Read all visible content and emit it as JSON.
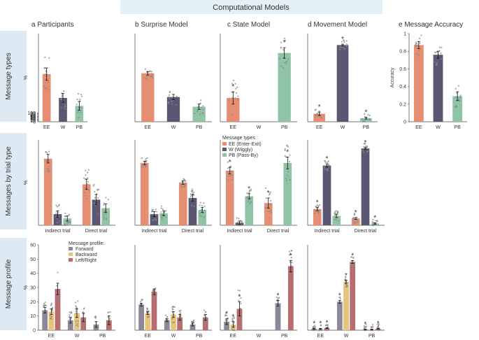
{
  "header": {
    "computational_label": "Computational Models"
  },
  "row_labels": [
    "Message types",
    "Messages by trial type",
    "Message profile"
  ],
  "column_titles": {
    "a": "a   Participants",
    "b": "b   Surprise Model",
    "c": "c   State Model",
    "d": "d   Movement Model",
    "e": "e   Message Accuracy"
  },
  "colors": {
    "EE": "#e58e72",
    "W": "#5b5773",
    "PB": "#8fc4a7",
    "Forward": "#8e8799",
    "Backward": "#e6c47a",
    "LeftRight": "#b86c6f",
    "banner": "#e4f0f8",
    "rowband": "#dde9f3",
    "dot": "#8a8a8a"
  },
  "legends": {
    "types_title": "Message types :",
    "types": [
      {
        "key": "EE",
        "label": "EE (Enter-Exit)"
      },
      {
        "key": "W",
        "label": "W (Wiggly)"
      },
      {
        "key": "PB",
        "label": "PB (Pass-By)"
      }
    ],
    "profile_title": "Message profile:",
    "profile": [
      {
        "key": "Forward",
        "label": "Forward"
      },
      {
        "key": "Backward",
        "label": "Backward"
      },
      {
        "key": "LeftRight",
        "label": "Left/Right"
      }
    ]
  },
  "chart_data": [
    {
      "id": "a1",
      "type": "bar",
      "title": "Participants",
      "ylabel": "%",
      "ylim": [
        0,
        100
      ],
      "yticks": [
        "0",
        "10",
        "20",
        "30",
        "40",
        "50",
        "60",
        "70",
        "80",
        "90",
        "100"
      ],
      "tick_every": 1,
      "categories": [
        "EE",
        "W",
        "PB"
      ],
      "values": [
        54,
        27,
        18
      ],
      "errors": [
        7,
        5,
        5
      ],
      "stars": [],
      "dots": true
    },
    {
      "id": "b1",
      "type": "bar",
      "title": "Surprise Model",
      "ylabel": "",
      "ylim": [
        0,
        100
      ],
      "categories": [
        "EE",
        "W",
        "PB"
      ],
      "values": [
        55,
        28,
        17
      ],
      "errors": [
        2,
        3,
        3
      ],
      "stars": [],
      "dots": true
    },
    {
      "id": "c1",
      "type": "bar",
      "title": "State Model",
      "ylabel": "",
      "ylim": [
        0,
        100
      ],
      "categories": [
        "EE",
        "W",
        "PB"
      ],
      "values": [
        27,
        0,
        78
      ],
      "errors": [
        7,
        0,
        6
      ],
      "stars": [
        "*",
        "",
        "*"
      ],
      "dots": true
    },
    {
      "id": "d1",
      "type": "bar",
      "title": "Movement Model",
      "ylabel": "",
      "ylim": [
        0,
        100
      ],
      "categories": [
        "EE",
        "W",
        "PB"
      ],
      "values": [
        9,
        87,
        4
      ],
      "errors": [
        2,
        1,
        1
      ],
      "stars": [
        "*",
        "*",
        "*"
      ],
      "dots": true
    },
    {
      "id": "e1",
      "type": "bar",
      "title": "Message Accuracy",
      "ylabel": "Accuracy",
      "ylim": [
        0,
        1
      ],
      "yticks": [
        "0",
        "0.2",
        "0.4",
        "0.6",
        "0.8",
        "1"
      ],
      "tick_every": 0.2,
      "categories": [
        "EE",
        "W",
        "PB"
      ],
      "values": [
        0.87,
        0.76,
        0.29
      ],
      "errors": [
        0.04,
        0.04,
        0.05
      ],
      "stars": [],
      "dots": true
    },
    {
      "id": "a2",
      "type": "bar",
      "title": "Participants",
      "ylabel": "%",
      "ylim": [
        0,
        100
      ],
      "groups": [
        "Indirect trial",
        "Direct trial"
      ],
      "series": [
        {
          "name": "EE",
          "values": [
            78,
            48
          ],
          "errors": [
            5,
            6
          ]
        },
        {
          "name": "W",
          "values": [
            13,
            30
          ],
          "errors": [
            4,
            6
          ]
        },
        {
          "name": "PB",
          "values": [
            8,
            20
          ],
          "errors": [
            3,
            5
          ]
        }
      ],
      "stars": [],
      "dots": true
    },
    {
      "id": "b2",
      "type": "bar",
      "title": "Surprise Model",
      "ylabel": "",
      "ylim": [
        0,
        100
      ],
      "groups": [
        "Indirect trial",
        "Direct trial"
      ],
      "series": [
        {
          "name": "EE",
          "values": [
            73,
            50
          ],
          "errors": [
            2,
            2
          ]
        },
        {
          "name": "W",
          "values": [
            13,
            32
          ],
          "errors": [
            3,
            4
          ]
        },
        {
          "name": "PB",
          "values": [
            14,
            18
          ],
          "errors": [
            3,
            3
          ]
        }
      ],
      "stars": [],
      "dots": true
    },
    {
      "id": "c2",
      "type": "bar",
      "title": "State Model",
      "ylabel": "",
      "ylim": [
        0,
        100
      ],
      "groups": [
        "Indirect trial",
        "Direct trial"
      ],
      "series": [
        {
          "name": "EE",
          "values": [
            64,
            26
          ],
          "errors": [
            4,
            6
          ]
        },
        {
          "name": "W",
          "values": [
            3,
            0
          ],
          "errors": [
            2,
            0
          ]
        },
        {
          "name": "PB",
          "values": [
            34,
            73
          ],
          "errors": [
            3,
            7
          ]
        }
      ],
      "stars": [
        [
          "*",
          "",
          "*"
        ],
        [
          "*",
          "",
          "*"
        ]
      ],
      "dots": true
    },
    {
      "id": "d2",
      "type": "bar",
      "title": "Movement Model",
      "ylabel": "",
      "ylim": [
        0,
        100
      ],
      "groups": [
        "Indirect trial",
        "Direct trial"
      ],
      "series": [
        {
          "name": "EE",
          "values": [
            19,
            8
          ],
          "errors": [
            2,
            1
          ]
        },
        {
          "name": "W",
          "values": [
            70,
            90
          ],
          "errors": [
            2,
            1
          ]
        },
        {
          "name": "PB",
          "values": [
            11,
            2
          ],
          "errors": [
            2,
            1
          ]
        }
      ],
      "stars": [
        [
          "*",
          "*",
          ""
        ],
        [
          "*",
          "*",
          "*"
        ]
      ],
      "dots": true
    },
    {
      "id": "a3",
      "type": "bar",
      "title": "Participants",
      "ylabel": "%",
      "ylim": [
        0,
        60
      ],
      "yticks": [
        "0",
        "10",
        "20",
        "30",
        "40",
        "50",
        "60"
      ],
      "tick_every": 10,
      "groups": [
        "EE",
        "W",
        "PB"
      ],
      "series": [
        {
          "name": "Forward",
          "values": [
            14,
            7,
            4
          ],
          "errors": [
            2,
            2,
            2
          ]
        },
        {
          "name": "Backward",
          "values": [
            13,
            12,
            0
          ],
          "errors": [
            2,
            3,
            0
          ]
        },
        {
          "name": "Left/Right",
          "values": [
            29,
            9,
            7
          ],
          "errors": [
            4,
            3,
            3
          ]
        }
      ],
      "stars": [],
      "dots": true
    },
    {
      "id": "b3",
      "type": "bar",
      "title": "Surprise Model",
      "ylabel": "",
      "ylim": [
        0,
        60
      ],
      "groups": [
        "EE",
        "W",
        "PB"
      ],
      "series": [
        {
          "name": "Forward",
          "values": [
            18,
            7,
            4
          ],
          "errors": [
            1,
            1,
            1
          ]
        },
        {
          "name": "Backward",
          "values": [
            12,
            11,
            0
          ],
          "errors": [
            1,
            2,
            0
          ]
        },
        {
          "name": "Left/Right",
          "values": [
            27,
            9,
            9
          ],
          "errors": [
            2,
            2,
            2
          ]
        }
      ],
      "stars": [],
      "dots": true
    },
    {
      "id": "c3",
      "type": "bar",
      "title": "State Model",
      "ylabel": "",
      "ylim": [
        0,
        60
      ],
      "groups": [
        "EE",
        "W",
        "PB"
      ],
      "series": [
        {
          "name": "Forward",
          "values": [
            6,
            0,
            19
          ],
          "errors": [
            2,
            0,
            2
          ]
        },
        {
          "name": "Backward",
          "values": [
            4,
            0,
            0
          ],
          "errors": [
            2,
            0,
            0
          ]
        },
        {
          "name": "Left/Right",
          "values": [
            15,
            0,
            45
          ],
          "errors": [
            5,
            0,
            4
          ]
        }
      ],
      "stars": [
        [
          "*",
          "*",
          "*"
        ],
        [
          "",
          "",
          ""
        ],
        [
          "*",
          "",
          "*"
        ]
      ],
      "dots": true
    },
    {
      "id": "d3",
      "type": "bar",
      "title": "Movement Model",
      "ylabel": "",
      "ylim": [
        0,
        60
      ],
      "groups": [
        "EE",
        "W",
        "PB"
      ],
      "series": [
        {
          "name": "Forward",
          "values": [
            1,
            20,
            0.5
          ],
          "errors": [
            0.3,
            1,
            0.2
          ]
        },
        {
          "name": "Backward",
          "values": [
            1,
            34,
            0.5
          ],
          "errors": [
            0.3,
            1,
            0.2
          ]
        },
        {
          "name": "Left/Right",
          "values": [
            1.5,
            48,
            1
          ],
          "errors": [
            0.3,
            1,
            0.2
          ]
        }
      ],
      "stars": [
        [
          "*",
          "*",
          "*"
        ],
        [
          "*",
          "*",
          "*"
        ],
        [
          "*",
          "",
          "*"
        ]
      ],
      "dots": true
    }
  ]
}
